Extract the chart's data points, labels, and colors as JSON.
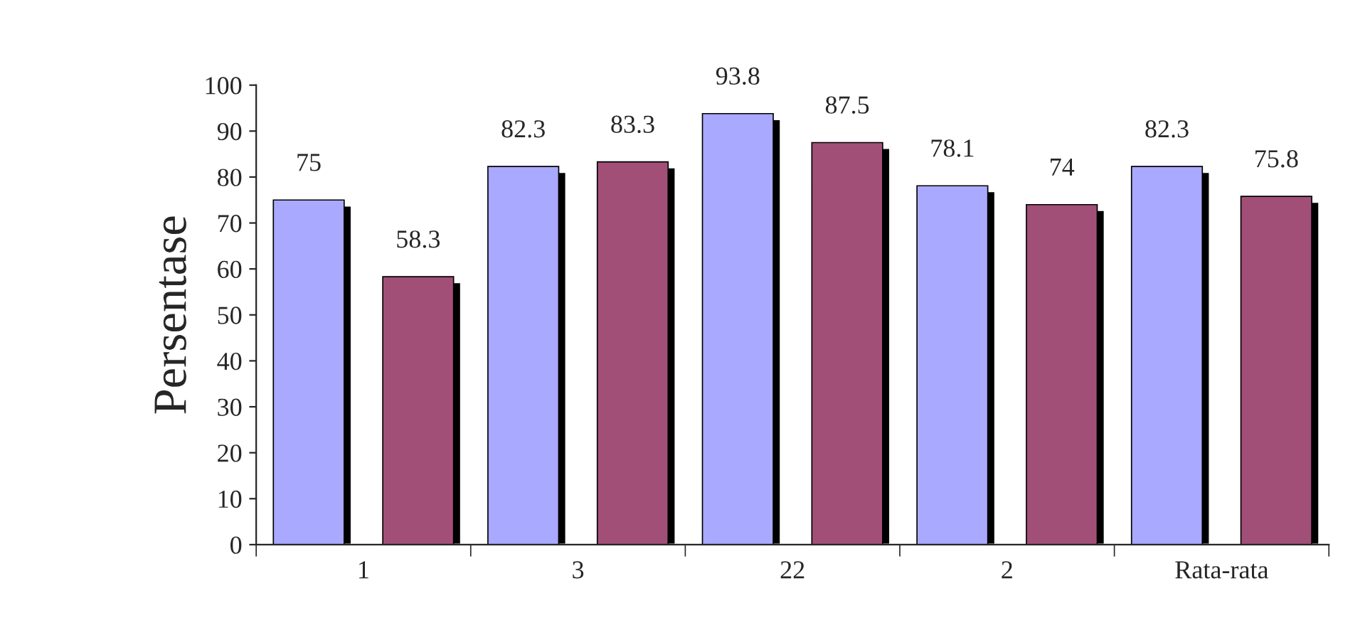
{
  "chart_data": {
    "type": "bar",
    "ylabel": "Persentase",
    "categories": [
      "1",
      "3",
      "22",
      "2",
      "Rata-rata"
    ],
    "series": [
      {
        "color": "#a9a9ff",
        "values": [
          75,
          82.3,
          93.8,
          78.1,
          82.3
        ]
      },
      {
        "color": "#a24f78",
        "values": [
          58.3,
          83.3,
          87.5,
          74,
          75.8
        ]
      }
    ],
    "ylim": [
      0,
      100
    ],
    "yticks": [
      0,
      10,
      20,
      30,
      40,
      50,
      60,
      70,
      80,
      90,
      100
    ],
    "data_labels": true,
    "grid": false,
    "legend": false
  }
}
